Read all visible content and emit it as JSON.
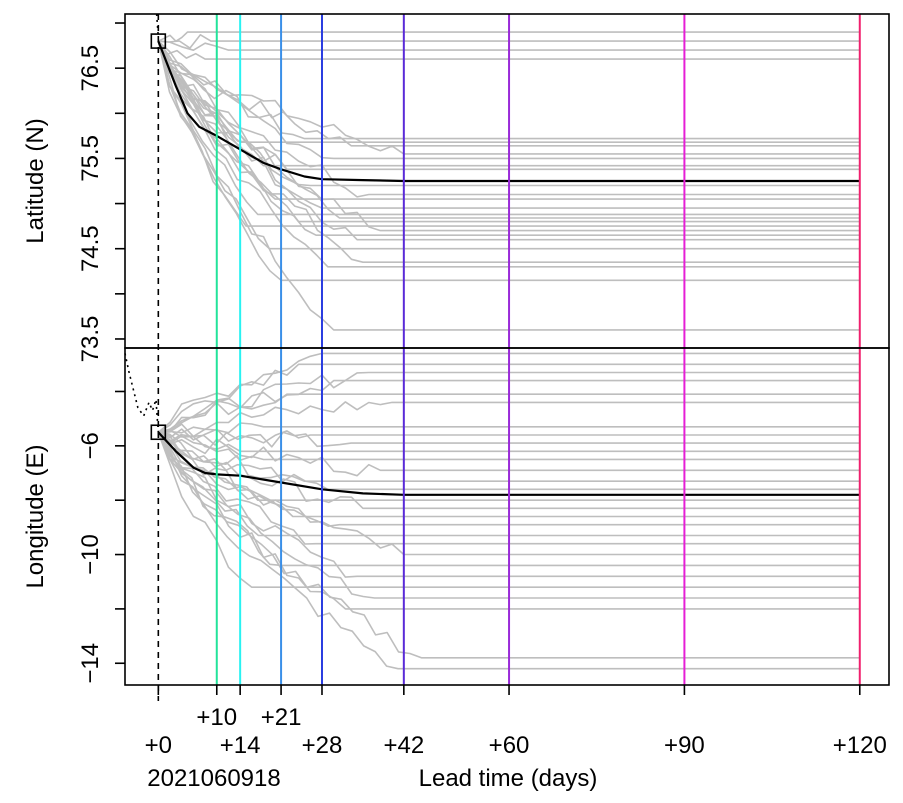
{
  "chart_data": {
    "type": "line",
    "xlabel": "Lead time (days)",
    "init_time_label": "2021060918",
    "x_ticks": [
      {
        "value": 0,
        "label": "+0",
        "row": "lower"
      },
      {
        "value": 10,
        "label": "+10",
        "row": "upper"
      },
      {
        "value": 14,
        "label": "+14",
        "row": "lower"
      },
      {
        "value": 21,
        "label": "+21",
        "row": "upper"
      },
      {
        "value": 28,
        "label": "+28",
        "row": "lower"
      },
      {
        "value": 42,
        "label": "+42",
        "row": "lower"
      },
      {
        "value": 60,
        "label": "+60",
        "row": "lower"
      },
      {
        "value": 90,
        "label": "+90",
        "row": "lower"
      },
      {
        "value": 120,
        "label": "+120",
        "row": "lower"
      }
    ],
    "lead_time_lines": [
      {
        "value": 10,
        "color": "#22e39a"
      },
      {
        "value": 14,
        "color": "#29f2f2"
      },
      {
        "value": 21,
        "color": "#3a8fe8"
      },
      {
        "value": 28,
        "color": "#2a3de0"
      },
      {
        "value": 42,
        "color": "#5a2ad8"
      },
      {
        "value": 60,
        "color": "#9a2ad8"
      },
      {
        "value": 90,
        "color": "#e61ed6"
      },
      {
        "value": 120,
        "color": "#f0206e"
      }
    ],
    "xlim": [
      -5.7,
      125
    ],
    "panels": [
      {
        "name": "latitude",
        "ylabel": "Latitude (N)",
        "ylim": [
          73.4,
          77.1
        ],
        "y_ticks": [
          "73.5",
          "74.5",
          "75.5",
          "76.5"
        ],
        "y_tick_values": [
          73.5,
          74.5,
          75.5,
          76.5
        ],
        "y_minor_ticks": [
          73.5,
          74.0,
          74.5,
          75.0,
          75.5,
          76.0,
          76.5,
          77.0
        ],
        "start_value": 76.8,
        "history": [
          [
            -0.3,
            77.1
          ],
          [
            0,
            76.85
          ]
        ],
        "ensemble_mean": [
          [
            0,
            76.8
          ],
          [
            3,
            76.3
          ],
          [
            5,
            76.0
          ],
          [
            7,
            75.85
          ],
          [
            10,
            75.75
          ],
          [
            14,
            75.6
          ],
          [
            18,
            75.45
          ],
          [
            21,
            75.38
          ],
          [
            25,
            75.3
          ],
          [
            28,
            75.27
          ],
          [
            35,
            75.26
          ],
          [
            42,
            75.25
          ],
          [
            60,
            75.25
          ],
          [
            90,
            75.25
          ],
          [
            120,
            75.25
          ]
        ],
        "member_final_values": [
          76.9,
          76.8,
          76.7,
          76.6,
          75.72,
          75.68,
          75.64,
          75.55,
          75.5,
          75.42,
          75.38,
          75.2,
          75.1,
          75.05,
          74.95,
          74.88,
          74.84,
          74.8,
          74.75,
          74.7,
          74.65,
          74.6,
          74.5,
          74.35,
          74.3,
          74.15,
          73.6
        ],
        "member_settle_times": [
          5,
          9,
          12,
          8,
          25,
          14,
          33,
          42,
          30,
          18,
          22,
          26,
          36,
          20,
          28,
          17,
          31,
          24,
          15,
          38,
          27,
          34,
          19,
          35,
          29,
          21,
          30
        ]
      },
      {
        "name": "longitude",
        "ylabel": "Longitude (E)",
        "ylim": [
          -14.8,
          -2.4
        ],
        "y_ticks": [
          "−14",
          "−10",
          "−6"
        ],
        "y_tick_values": [
          -14,
          -10,
          -6
        ],
        "y_minor_ticks": [
          -14,
          -12,
          -10,
          -8,
          -6,
          -4
        ],
        "start_value": -5.5,
        "history": [
          [
            -5.7,
            -2.6
          ],
          [
            -5.0,
            -3.3
          ],
          [
            -3.5,
            -4.6
          ],
          [
            -2.5,
            -4.9
          ],
          [
            -1.6,
            -4.4
          ],
          [
            -1.0,
            -4.7
          ],
          [
            -0.4,
            -4.3
          ],
          [
            -0.2,
            -4.9
          ],
          [
            0,
            -5.5
          ]
        ],
        "ensemble_mean": [
          [
            0,
            -5.5
          ],
          [
            3,
            -6.2
          ],
          [
            6,
            -6.8
          ],
          [
            8,
            -7.0
          ],
          [
            10,
            -7.05
          ],
          [
            14,
            -7.1
          ],
          [
            21,
            -7.35
          ],
          [
            28,
            -7.6
          ],
          [
            35,
            -7.75
          ],
          [
            42,
            -7.8
          ],
          [
            60,
            -7.8
          ],
          [
            90,
            -7.8
          ],
          [
            120,
            -7.8
          ]
        ],
        "member_final_values": [
          -2.6,
          -3.0,
          -3.3,
          -3.6,
          -4.1,
          -4.4,
          -5.3,
          -5.6,
          -5.9,
          -6.2,
          -6.5,
          -6.9,
          -7.3,
          -7.6,
          -8.0,
          -8.3,
          -8.6,
          -8.9,
          -9.3,
          -9.6,
          -10.0,
          -10.4,
          -10.8,
          -11.2,
          -11.6,
          -12.0,
          -13.8,
          -14.2
        ],
        "member_settle_times": [
          28,
          24,
          36,
          30,
          22,
          40,
          18,
          26,
          33,
          14,
          20,
          38,
          25,
          29,
          17,
          35,
          23,
          31,
          19,
          27,
          42,
          21,
          34,
          16,
          37,
          32,
          45,
          41
        ]
      }
    ],
    "colors": {
      "ensemble_members": "#bebebe",
      "ensemble_mean": "#000000",
      "init_line": "#000000",
      "frame": "#000000"
    }
  }
}
